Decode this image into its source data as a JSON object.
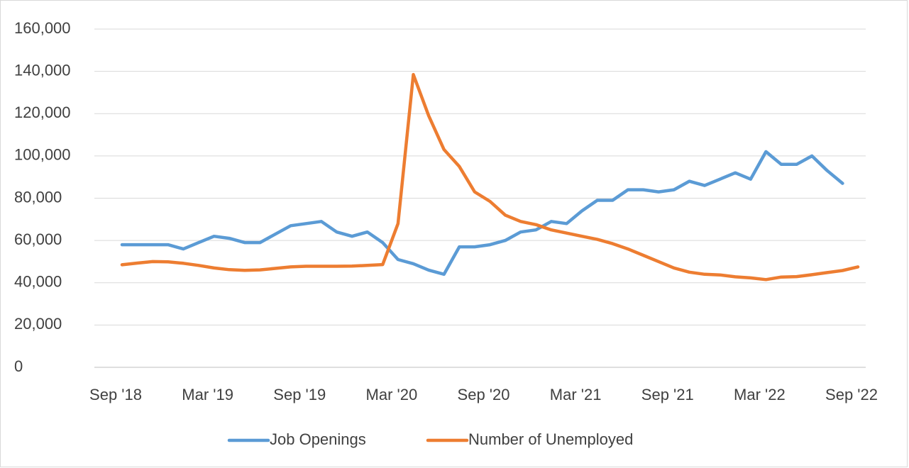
{
  "chart_data": {
    "type": "line",
    "categories": [
      "Sep '18",
      null,
      null,
      null,
      null,
      null,
      "Mar '19",
      null,
      null,
      null,
      null,
      null,
      "Sep '19",
      null,
      null,
      null,
      null,
      null,
      "Mar '20",
      null,
      null,
      null,
      null,
      null,
      "Sep '20",
      null,
      null,
      null,
      null,
      null,
      "Mar '21",
      null,
      null,
      null,
      null,
      null,
      "Sep '21",
      null,
      null,
      null,
      null,
      null,
      "Mar '22",
      null,
      null,
      null,
      null,
      null,
      "Sep '22"
    ],
    "series": [
      {
        "name": "Job Openings",
        "color": "#5b9bd5",
        "values": [
          58000,
          58000,
          58000,
          58000,
          56000,
          59000,
          62000,
          61000,
          59000,
          59000,
          63000,
          67000,
          68000,
          69000,
          64000,
          62000,
          64000,
          59000,
          51000,
          49000,
          46000,
          44000,
          57000,
          57000,
          58000,
          60000,
          64000,
          65000,
          69000,
          68000,
          74000,
          79000,
          79000,
          84000,
          84000,
          83000,
          84000,
          88000,
          86000,
          89000,
          92000,
          89000,
          102000,
          96000,
          96000,
          100000,
          93000,
          87000,
          null
        ]
      },
      {
        "name": "Number of Unemployed",
        "color": "#ed7d31",
        "values": [
          48500,
          49300,
          50000,
          49900,
          49200,
          48200,
          47000,
          46200,
          45900,
          46100,
          46800,
          47500,
          47800,
          47800,
          47800,
          47900,
          48200,
          48600,
          68000,
          138500,
          119000,
          103000,
          95000,
          83000,
          78500,
          72000,
          69000,
          67500,
          65000,
          63500,
          62000,
          60500,
          58500,
          56000,
          53000,
          50000,
          47000,
          45000,
          44000,
          43700,
          42800,
          42300,
          41500,
          42700,
          42900,
          43800,
          44800,
          45800,
          47500
        ]
      }
    ],
    "ylim": [
      0,
      160000
    ],
    "yticks": [
      0,
      {
        "value": 20000,
        "label": "20,000"
      },
      {
        "value": 40000,
        "label": "40,000"
      },
      {
        "value": 60000,
        "label": "60,000"
      },
      {
        "value": 80000,
        "label": "80,000"
      },
      {
        "value": 100000,
        "label": "100,000"
      },
      {
        "value": 120000,
        "label": "120,000"
      },
      {
        "value": 140000,
        "label": "140,000"
      },
      {
        "value": 160000,
        "label": "160,000"
      }
    ],
    "grid": true,
    "legend": "bottom"
  }
}
